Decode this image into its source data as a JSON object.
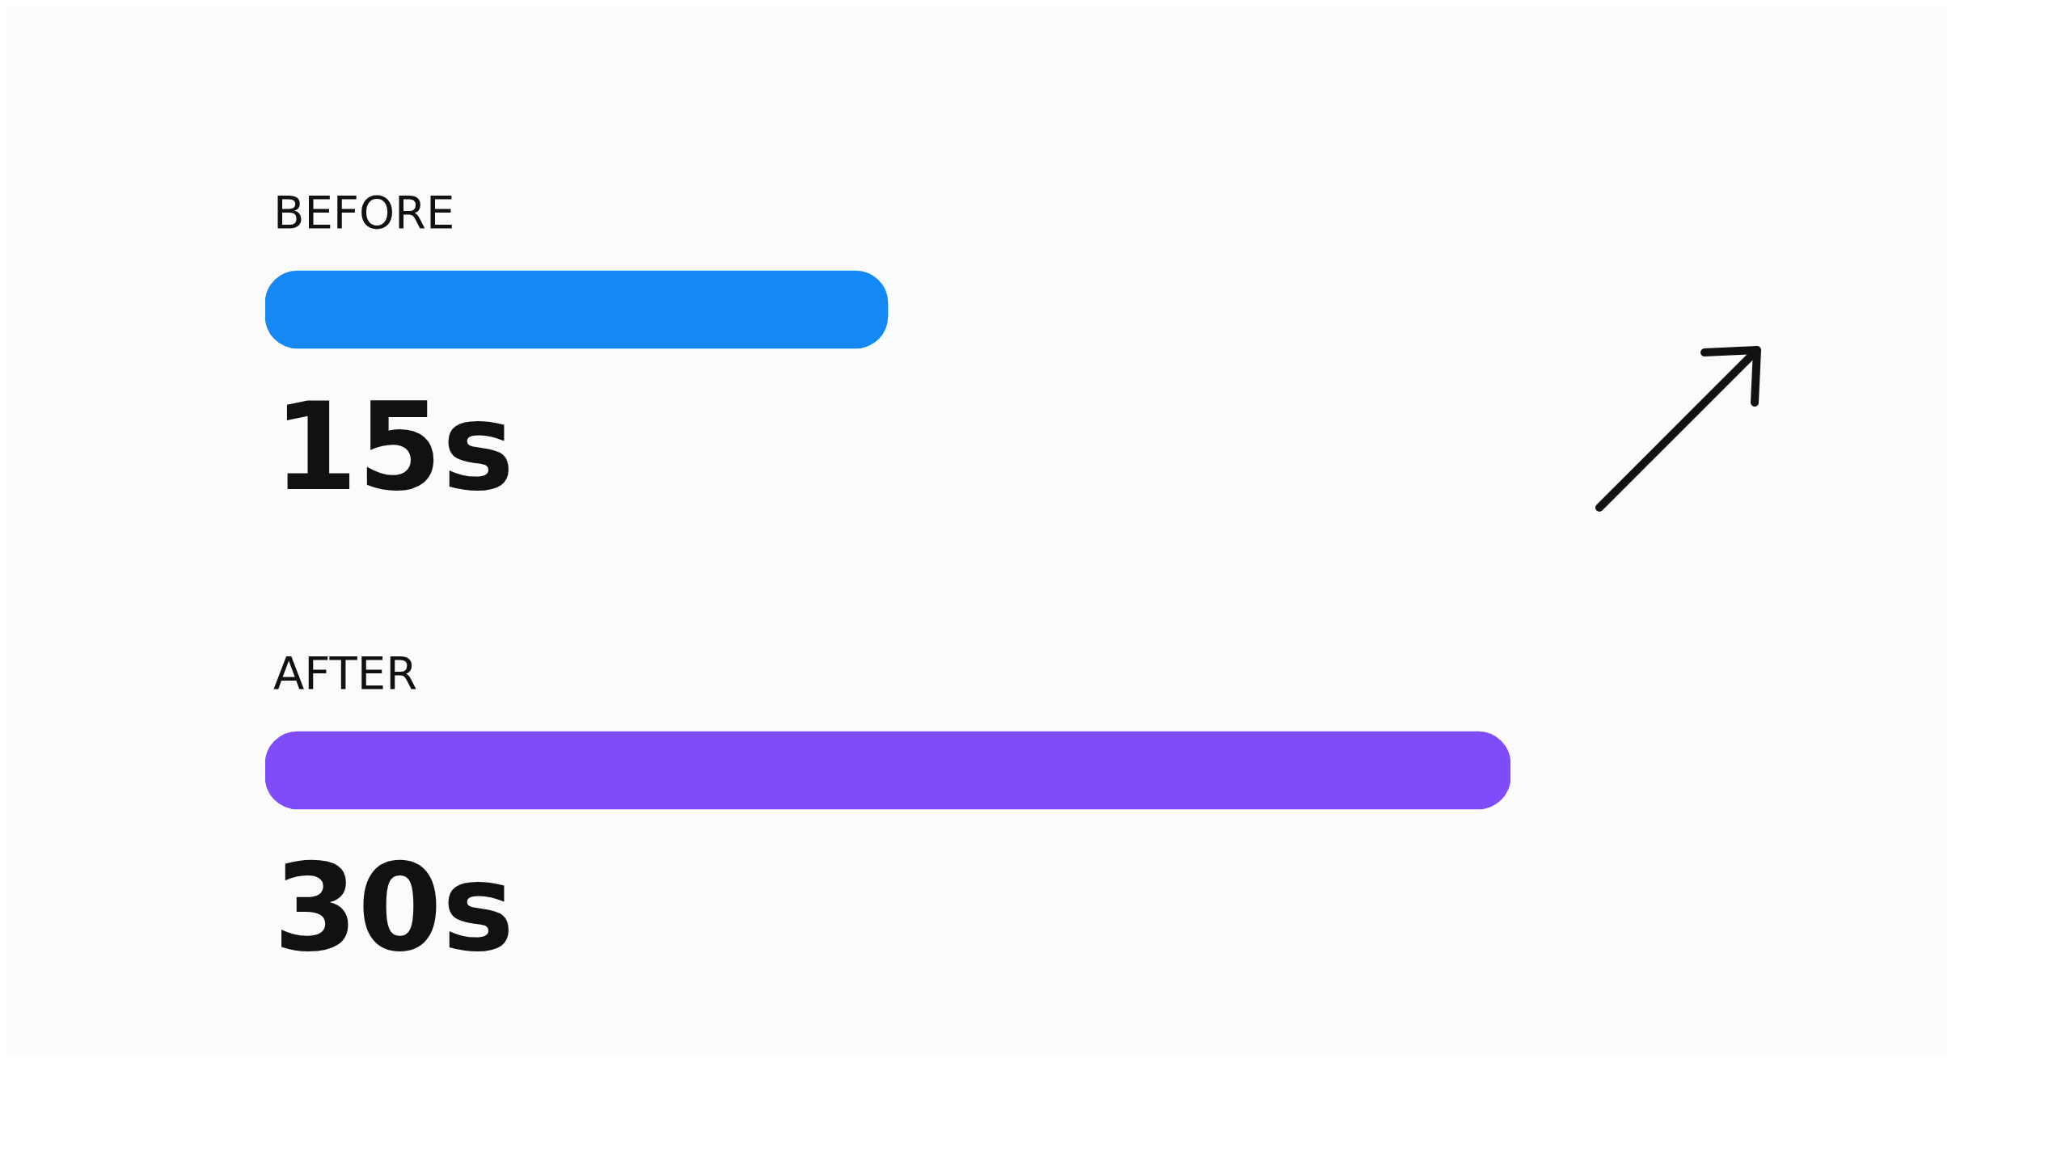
{
  "chart_data": {
    "type": "bar",
    "orientation": "horizontal",
    "categories": [
      "BEFORE",
      "AFTER"
    ],
    "values": [
      15,
      30
    ],
    "colors": [
      "#1488f5",
      "#7f4cfb"
    ],
    "value_labels": [
      "15s",
      "30s"
    ]
  }
}
